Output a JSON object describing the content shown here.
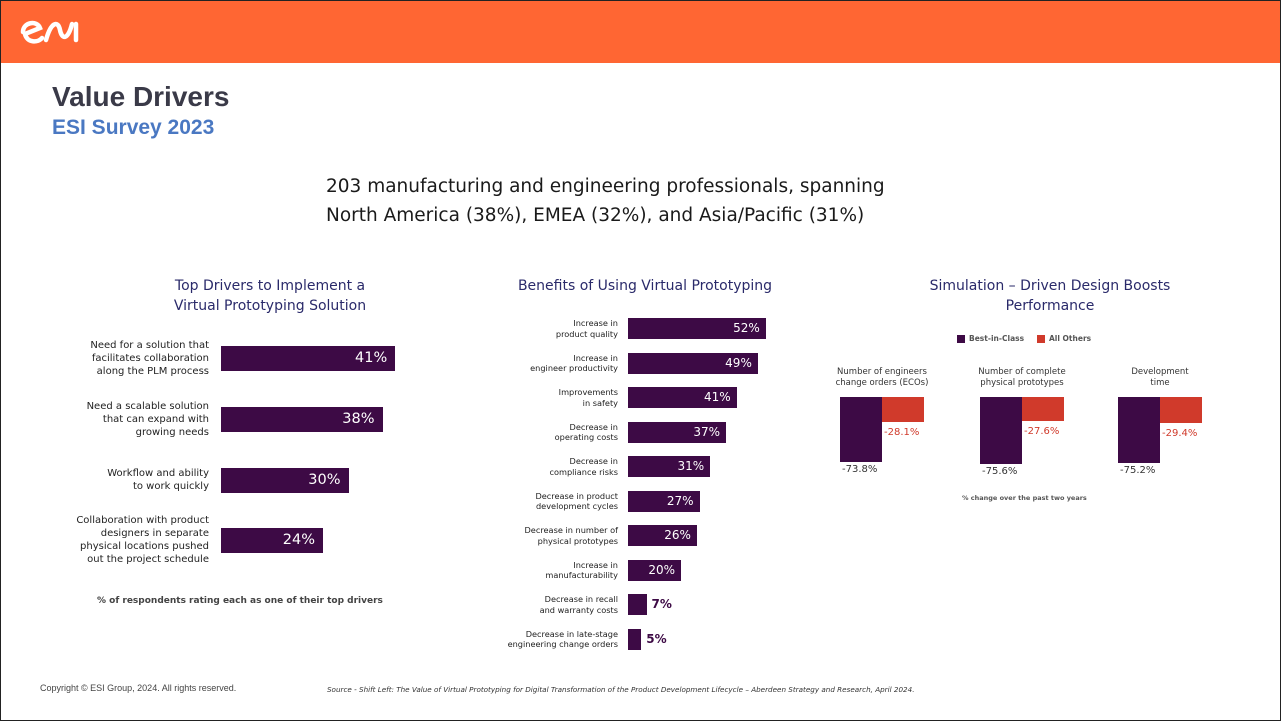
{
  "header": {
    "brand_color": "#ff6633",
    "logo_icon": "esi-logo-icon",
    "title": "Value Drivers",
    "subtitle": "ESI Survey 2023"
  },
  "intro": {
    "line1": "203 manufacturing and engineering professionals, spanning",
    "line2": "North America (38%), EMEA (32%), and Asia/Pacific (31%)"
  },
  "chart_data": [
    {
      "type": "bar",
      "orientation": "horizontal",
      "title": "Top Drivers to Implement a Virtual Prototyping Solution",
      "title_lines": [
        "Top Drivers to Implement a",
        "Virtual Prototyping Solution"
      ],
      "categories": [
        [
          "Need for a solution that",
          "facilitates collaboration",
          "along the PLM process"
        ],
        [
          "Need a scalable solution",
          "that can expand with",
          "growing needs"
        ],
        [
          "Workflow and ability",
          "to work quickly"
        ],
        [
          "Collaboration with product",
          "designers in separate",
          "physical locations pushed",
          "out the project schedule"
        ]
      ],
      "values": [
        41,
        38,
        30,
        24
      ],
      "value_labels": [
        "41%",
        "38%",
        "30%",
        "24%"
      ],
      "note": "% of respondents rating each as one of their top drivers",
      "bar_color": "#3d0a45"
    },
    {
      "type": "bar",
      "orientation": "horizontal",
      "title": "Benefits of Using Virtual Prototyping",
      "categories": [
        [
          "Increase in",
          "product quality"
        ],
        [
          "Increase in",
          "engineer productivity"
        ],
        [
          "Improvements",
          "in safety"
        ],
        [
          "Decrease in",
          "operating costs"
        ],
        [
          "Decrease in",
          "compliance risks"
        ],
        [
          "Decrease in product",
          "development cycles"
        ],
        [
          "Decrease in number of",
          "physical prototypes"
        ],
        [
          "Increase in",
          "manufacturability"
        ],
        [
          "Decrease in recall",
          "and warranty costs"
        ],
        [
          "Decrease in late-stage",
          "engineering change orders"
        ]
      ],
      "values": [
        52,
        49,
        41,
        37,
        31,
        27,
        26,
        20,
        7,
        5
      ],
      "value_labels": [
        "52%",
        "49%",
        "41%",
        "37%",
        "31%",
        "27%",
        "26%",
        "20%",
        "7%",
        "5%"
      ],
      "bar_color": "#3d0a45"
    },
    {
      "type": "bar",
      "title": "Simulation – Driven Design Boosts Performance",
      "title_lines": [
        "Simulation – Driven Design Boosts",
        "Performance"
      ],
      "categories": [
        [
          "Number of engineers",
          "change orders (ECOs)"
        ],
        [
          "Number of complete",
          "physical prototypes"
        ],
        [
          "Development",
          "time"
        ]
      ],
      "series": [
        {
          "name": "Best-in-Class",
          "values": [
            -73.8,
            -75.6,
            -75.2
          ],
          "labels": [
            "-73.8%",
            "-75.6%",
            "-75.2%"
          ],
          "color": "#3d0a45"
        },
        {
          "name": "All Others",
          "values": [
            -28.1,
            -27.6,
            -29.4
          ],
          "labels": [
            "-28.1%",
            "-27.6%",
            "-29.4%"
          ],
          "color": "#d03a2b"
        }
      ],
      "note": "% change over the past two years"
    }
  ],
  "footer": {
    "copyright": "Copyright © ESI Group, 2024. All rights reserved.",
    "source": "Source - Shift Left: The Value of Virtual Prototyping for Digital Transformation of the Product Development Lifecycle – Aberdeen Strategy and Research, April 2024."
  }
}
